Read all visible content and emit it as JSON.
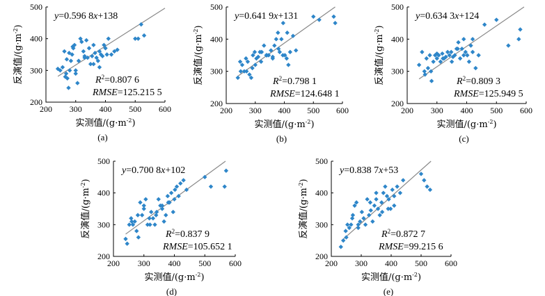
{
  "chart_data": [
    {
      "panel": "(a)",
      "type": "scatter",
      "equation": {
        "slope": "0.596 8",
        "intercept": "138"
      },
      "r2": "0.807 6",
      "rmse": "125.215 5",
      "xlabel": "实测值/(g·m",
      "ylabel": "反演值/(g·m",
      "xlim": [
        200,
        600
      ],
      "ylim": [
        200,
        500
      ],
      "xticks": [
        200,
        300,
        400,
        500,
        600
      ],
      "yticks": [
        200,
        300,
        400,
        500
      ],
      "x": [
        240,
        248,
        256,
        262,
        268,
        272,
        276,
        280,
        284,
        288,
        292,
        296,
        300,
        306,
        310,
        316,
        320,
        326,
        330,
        336,
        340,
        345,
        350,
        355,
        360,
        365,
        370,
        375,
        380,
        385,
        390,
        395,
        400,
        405,
        410,
        420,
        430,
        440,
        500,
        510,
        520,
        530,
        278,
        290,
        300,
        330,
        360,
        380,
        270,
        265
      ],
      "y": [
        305,
        300,
        310,
        360,
        290,
        275,
        245,
        300,
        330,
        350,
        370,
        380,
        300,
        260,
        330,
        400,
        390,
        360,
        340,
        395,
        340,
        370,
        320,
        345,
        380,
        355,
        340,
        330,
        360,
        350,
        345,
        380,
        370,
        350,
        400,
        350,
        360,
        365,
        400,
        400,
        445,
        410,
        355,
        375,
        290,
        345,
        320,
        310,
        335,
        280
      ]
    },
    {
      "panel": "(b)",
      "type": "scatter",
      "equation": {
        "slope": "0.641 9",
        "intercept": "131"
      },
      "r2": "0.798 1",
      "rmse": "124.648 1",
      "xlabel": "实测值/(g·m",
      "ylabel": "反演值/(g·m",
      "xlim": [
        200,
        600
      ],
      "ylim": [
        200,
        500
      ],
      "xticks": [
        200,
        300,
        400,
        500,
        600
      ],
      "yticks": [
        200,
        300,
        400,
        500
      ],
      "x": [
        240,
        248,
        255,
        262,
        268,
        274,
        280,
        286,
        292,
        298,
        304,
        310,
        316,
        322,
        330,
        338,
        346,
        354,
        360,
        366,
        372,
        378,
        384,
        390,
        396,
        402,
        408,
        414,
        420,
        430,
        440,
        500,
        520,
        570,
        575,
        250,
        270,
        290,
        300,
        320,
        340,
        360,
        380,
        395,
        410
      ],
      "y": [
        280,
        330,
        320,
        300,
        340,
        330,
        290,
        280,
        350,
        360,
        340,
        345,
        360,
        360,
        380,
        350,
        350,
        365,
        340,
        380,
        400,
        420,
        360,
        400,
        450,
        350,
        340,
        320,
        360,
        410,
        365,
        470,
        460,
        470,
        450,
        300,
        300,
        310,
        320,
        330,
        350,
        345,
        370,
        350,
        420
      ]
    },
    {
      "panel": "(c)",
      "type": "scatter",
      "equation": {
        "slope": "0.634 3",
        "intercept": "124"
      },
      "r2": "0.809 3",
      "rmse": "125.949 5",
      "xlabel": "实测值/(g·m",
      "ylabel": "反演值/(g·m",
      "xlim": [
        200,
        600
      ],
      "ylim": [
        200,
        500
      ],
      "xticks": [
        200,
        300,
        400,
        500,
        600
      ],
      "yticks": [
        200,
        300,
        400,
        500
      ],
      "x": [
        240,
        250,
        258,
        265,
        270,
        276,
        282,
        288,
        294,
        300,
        306,
        312,
        318,
        324,
        330,
        336,
        342,
        348,
        354,
        360,
        366,
        372,
        378,
        384,
        390,
        396,
        402,
        408,
        414,
        420,
        430,
        440,
        460,
        500,
        540,
        580,
        575,
        260,
        280,
        300,
        320,
        350,
        370,
        390,
        420
      ],
      "y": [
        320,
        360,
        300,
        340,
        310,
        350,
        270,
        330,
        350,
        340,
        350,
        330,
        355,
        340,
        345,
        360,
        350,
        360,
        345,
        350,
        370,
        390,
        340,
        370,
        400,
        360,
        350,
        330,
        380,
        360,
        310,
        350,
        445,
        460,
        380,
        430,
        400,
        290,
        300,
        355,
        340,
        330,
        370,
        350,
        400
      ]
    },
    {
      "panel": "(d)",
      "type": "scatter",
      "equation": {
        "slope": "0.700 8",
        "intercept": "102"
      },
      "r2": "0.837 9",
      "rmse": "105.652 1",
      "xlabel": "实测值/(g·m",
      "ylabel": "反演值/(g·m",
      "xlim": [
        200,
        600
      ],
      "ylim": [
        200,
        500
      ],
      "xticks": [
        200,
        300,
        400,
        500,
        600
      ],
      "yticks": [
        200,
        300,
        400,
        500
      ],
      "x": [
        240,
        245,
        252,
        258,
        264,
        270,
        276,
        282,
        288,
        294,
        300,
        306,
        312,
        318,
        324,
        330,
        336,
        342,
        348,
        354,
        360,
        366,
        372,
        378,
        384,
        390,
        396,
        402,
        408,
        414,
        420,
        430,
        440,
        500,
        520,
        565,
        570,
        260,
        280,
        300,
        320,
        340,
        360,
        380,
        400
      ],
      "y": [
        255,
        240,
        300,
        320,
        300,
        310,
        280,
        260,
        370,
        330,
        350,
        380,
        300,
        320,
        340,
        320,
        300,
        340,
        380,
        360,
        350,
        310,
        330,
        390,
        370,
        400,
        340,
        410,
        420,
        390,
        430,
        440,
        410,
        450,
        420,
        420,
        470,
        310,
        330,
        360,
        300,
        330,
        360,
        370,
        380
      ]
    },
    {
      "panel": "(e)",
      "type": "scatter",
      "equation": {
        "slope": "0.838 7",
        "intercept": "53"
      },
      "r2": "0.872 7",
      "rmse": "99.215 6",
      "xlabel": "实测值/(g·m",
      "ylabel": "反演值/(g·m",
      "xlim": [
        200,
        600
      ],
      "ylim": [
        200,
        500
      ],
      "xticks": [
        200,
        300,
        400,
        500,
        600
      ],
      "yticks": [
        200,
        300,
        400,
        500
      ],
      "x": [
        232,
        240,
        248,
        254,
        260,
        266,
        272,
        278,
        284,
        290,
        296,
        302,
        308,
        314,
        320,
        326,
        332,
        338,
        344,
        350,
        356,
        362,
        368,
        374,
        380,
        386,
        392,
        398,
        404,
        410,
        420,
        430,
        440,
        500,
        510,
        520,
        530,
        250,
        270,
        290,
        330,
        350,
        370,
        390,
        410
      ],
      "y": [
        230,
        250,
        280,
        300,
        290,
        300,
        330,
        360,
        370,
        300,
        310,
        340,
        320,
        300,
        380,
        330,
        345,
        310,
        360,
        400,
        350,
        330,
        370,
        400,
        420,
        390,
        380,
        350,
        410,
        360,
        420,
        400,
        440,
        460,
        440,
        420,
        410,
        260,
        320,
        290,
        370,
        380,
        340,
        350,
        390
      ]
    }
  ]
}
